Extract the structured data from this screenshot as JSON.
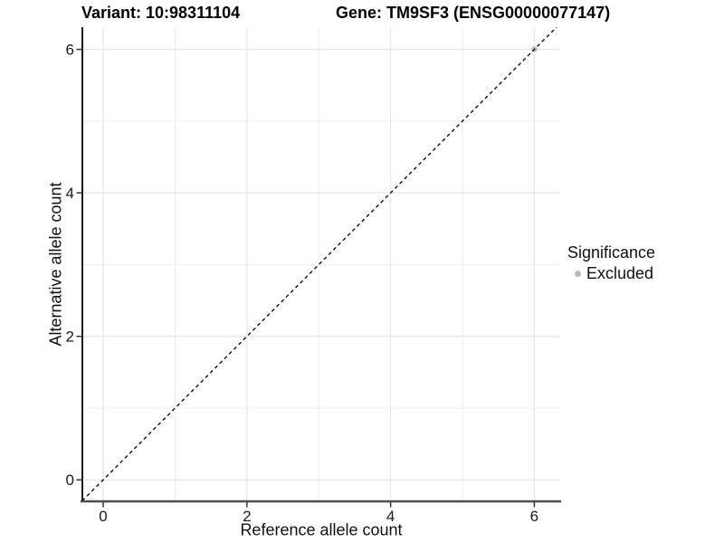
{
  "header": {
    "variant_title": "Variant: 10:98311104",
    "gene_title": "Gene: TM9SF3 (ENSG00000077147)"
  },
  "legend": {
    "title": "Significance",
    "position": "right",
    "items": [
      {
        "label": "Excluded",
        "color": "#b9b9b9",
        "marker": "circle"
      }
    ]
  },
  "chart_data": {
    "type": "scatter",
    "title": "",
    "xlabel": "Reference allele count",
    "ylabel": "Alternative allele count",
    "xlim": [
      -0.29,
      6.36
    ],
    "ylim": [
      -0.3,
      6.31
    ],
    "x_breaks": [
      0,
      2,
      4,
      6
    ],
    "y_breaks": [
      0,
      2,
      4,
      6
    ],
    "x_minor_breaks": [
      1,
      3,
      5
    ],
    "y_minor_breaks": [
      1,
      3,
      5
    ],
    "grid": true,
    "legend_position": "right",
    "series": [
      {
        "name": "Excluded",
        "color": "#b9b9b9",
        "points": [
          {
            "x": 6,
            "y": 6
          }
        ]
      }
    ],
    "reference_line": {
      "kind": "abline",
      "slope": 1,
      "intercept": 0,
      "style": "dashed",
      "color": "#000000"
    },
    "style": {
      "panel_background": "#ffffff",
      "grid_major_color": "#e7e7e7",
      "grid_minor_color": "#ededed",
      "axis_line_y_color": "#000000",
      "axis_line_x_color": "#4d4d4d",
      "tick_color": "#333333",
      "tick_label_color": "#1a1a1a"
    }
  }
}
